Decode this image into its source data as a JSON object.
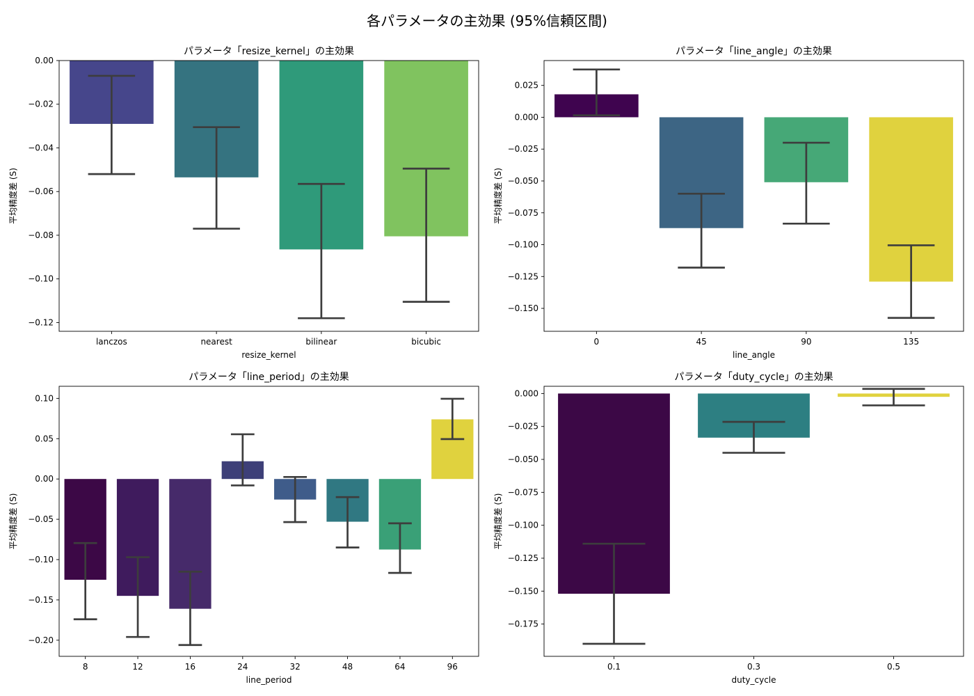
{
  "figure": {
    "suptitle": "各パラメータの主効果 (95%信頼区間)"
  },
  "chart_data": [
    {
      "type": "bar",
      "title": "パラメータ「resize_kernel」の主効果",
      "xlabel": "resize_kernel",
      "ylabel": "平均精度差 (S)",
      "categories": [
        "lanczos",
        "nearest",
        "bilinear",
        "bicubic"
      ],
      "values": [
        -0.029,
        -0.0535,
        -0.0865,
        -0.0805
      ],
      "ci_low": [
        -0.052,
        -0.077,
        -0.118,
        -0.1105
      ],
      "ci_high": [
        -0.007,
        -0.0305,
        -0.0565,
        -0.0495
      ],
      "colors": [
        "#46468b",
        "#357380",
        "#2f9a7a",
        "#80c35f"
      ],
      "ylim": [
        -0.124,
        0.0
      ],
      "yticks": [
        0.0,
        -0.02,
        -0.04,
        -0.06,
        -0.08,
        -0.1,
        -0.12
      ],
      "ytick_labels": [
        "0.00",
        "−0.02",
        "−0.04",
        "−0.06",
        "−0.08",
        "−0.10",
        "−0.12"
      ]
    },
    {
      "type": "bar",
      "title": "パラメータ「line_angle」の主効果",
      "xlabel": "line_angle",
      "ylabel": "平均精度差 (S)",
      "categories": [
        "0",
        "45",
        "90",
        "135"
      ],
      "values": [
        0.018,
        -0.087,
        -0.051,
        -0.129
      ],
      "ci_low": [
        0.0015,
        -0.118,
        -0.0835,
        -0.1575
      ],
      "ci_high": [
        0.0375,
        -0.06,
        -0.02,
        -0.1005
      ],
      "colors": [
        "#3f044f",
        "#3d6584",
        "#46a877",
        "#e0d23e"
      ],
      "ylim": [
        -0.168,
        0.0445
      ],
      "yticks": [
        0.025,
        0.0,
        -0.025,
        -0.05,
        -0.075,
        -0.1,
        -0.125,
        -0.15
      ],
      "ytick_labels": [
        "0.025",
        "0.000",
        "−0.025",
        "−0.050",
        "−0.075",
        "−0.100",
        "−0.125",
        "−0.150"
      ]
    },
    {
      "type": "bar",
      "title": "パラメータ「line_period」の主効果",
      "xlabel": "line_period",
      "ylabel": "平均精度差 (S)",
      "categories": [
        "8",
        "12",
        "16",
        "24",
        "32",
        "48",
        "64",
        "96"
      ],
      "values": [
        -0.125,
        -0.145,
        -0.161,
        0.022,
        -0.0255,
        -0.053,
        -0.0875,
        0.074
      ],
      "ci_low": [
        -0.174,
        -0.196,
        -0.206,
        -0.008,
        -0.0535,
        -0.085,
        -0.1165,
        0.0495
      ],
      "ci_high": [
        -0.0795,
        -0.097,
        -0.115,
        0.0555,
        0.0025,
        -0.0225,
        -0.055,
        0.0995
      ],
      "colors": [
        "#3c0846",
        "#3f1b5d",
        "#462a6a",
        "#3d3f78",
        "#3f5c8a",
        "#307882",
        "#3aa077",
        "#e0d23e"
      ],
      "ylim": [
        -0.22,
        0.115
      ],
      "yticks": [
        0.1,
        0.05,
        0.0,
        -0.05,
        -0.1,
        -0.15,
        -0.2
      ],
      "ytick_labels": [
        "0.10",
        "0.05",
        "0.00",
        "−0.05",
        "−0.10",
        "−0.15",
        "−0.20"
      ]
    },
    {
      "type": "bar",
      "title": "パラメータ「duty_cycle」の主効果",
      "xlabel": "duty_cycle",
      "ylabel": "平均精度差 (S)",
      "categories": [
        "0.1",
        "0.3",
        "0.5"
      ],
      "values": [
        -0.152,
        -0.0335,
        -0.0025
      ],
      "ci_low": [
        -0.19,
        -0.045,
        -0.009
      ],
      "ci_high": [
        -0.114,
        -0.0215,
        0.0035
      ],
      "colors": [
        "#3c0846",
        "#2d7f82",
        "#e0d23e"
      ],
      "ylim": [
        -0.1995,
        0.0055
      ],
      "yticks": [
        0.0,
        -0.025,
        -0.05,
        -0.075,
        -0.1,
        -0.125,
        -0.15,
        -0.175
      ],
      "ytick_labels": [
        "0.000",
        "−0.025",
        "−0.050",
        "−0.075",
        "−0.100",
        "−0.125",
        "−0.150",
        "−0.175"
      ]
    }
  ]
}
